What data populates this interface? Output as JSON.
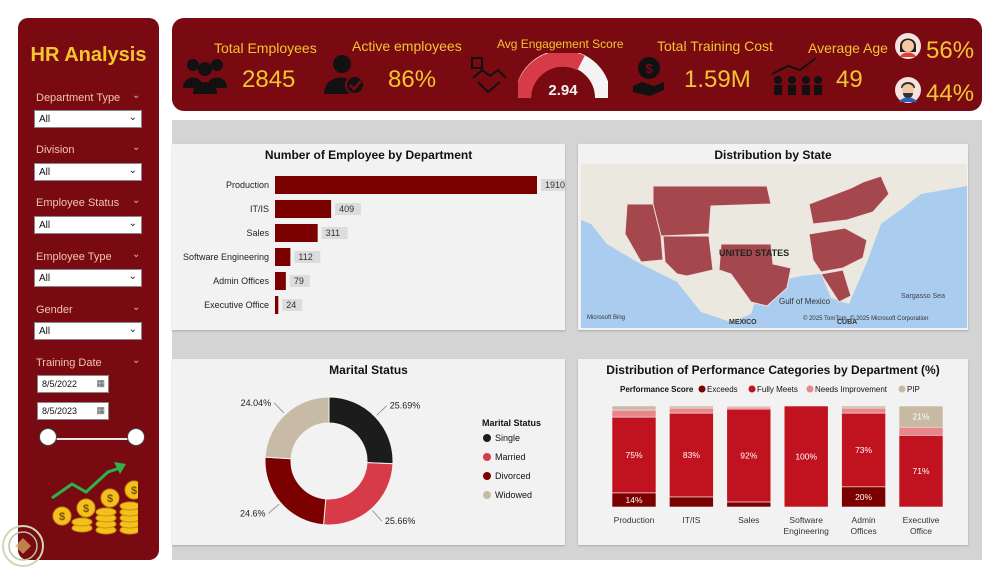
{
  "sidebar": {
    "title": "HR Analysis",
    "filters": [
      {
        "label": "Department Type",
        "value": "All"
      },
      {
        "label": "Division",
        "value": "All"
      },
      {
        "label": "Employee Status",
        "value": "All"
      },
      {
        "label": "Employee Type",
        "value": "All"
      },
      {
        "label": "Gender",
        "value": "All"
      }
    ],
    "training": {
      "label": "Training Date",
      "start": "8/5/2022",
      "end": "8/5/2023"
    }
  },
  "kpis": {
    "total_employees": {
      "label": "Total Employees",
      "value": "2845"
    },
    "active_employees": {
      "label": "Active employees",
      "value": "86%"
    },
    "engagement": {
      "label": "Avg Engagement Score",
      "value": "2.94"
    },
    "training_cost": {
      "label": "Total Training Cost",
      "value": "1.59M"
    },
    "average_age": {
      "label": "Average Age",
      "value": "49"
    },
    "female_pct": "56%",
    "male_pct": "44%"
  },
  "colors": {
    "maroon": "#7a0a12",
    "gold": "#f3c52f",
    "bar": "#7b0000",
    "fully": "#c1121f",
    "needs": "#e8868a",
    "pip": "#c8b9a3",
    "single": "#1c1c1c",
    "married": "#d63b47",
    "divorced": "#7b0000",
    "widowed": "#c8bba5"
  },
  "dept_chart": {
    "title": "Number of Employee by Department",
    "chart_data": {
      "type": "bar",
      "categories": [
        "Production",
        "IT/IS",
        "Sales",
        "Software Engineering",
        "Admin Offices",
        "Executive Office"
      ],
      "values": [
        1910,
        409,
        311,
        112,
        79,
        24
      ]
    }
  },
  "map": {
    "title": "Distribution by State",
    "labels": {
      "country": "UNITED STATES",
      "gulf": "Gulf of Mexico",
      "mexico": "MEXICO",
      "cuba": "CUBA",
      "sea": "Sargasso Sea",
      "bing": "Microsoft Bing",
      "copyright": "© 2025 TomTom, © 2025 Microsoft Corporation"
    }
  },
  "marital": {
    "title": "Marital Status",
    "legend_title": "Marital Status",
    "chart_data": {
      "type": "pie",
      "categories": [
        "Single",
        "Married",
        "Divorced",
        "Widowed"
      ],
      "values": [
        25.69,
        25.66,
        24.6,
        24.04
      ],
      "labels": [
        "25.69%",
        "25.66%",
        "24.6%",
        "24.04%"
      ]
    }
  },
  "performance": {
    "title": "Distribution of Performance Categories by Department (%)",
    "legend_title": "Performance Score",
    "chart_data": {
      "type": "bar",
      "categories": [
        "Production",
        "IT/IS",
        "Sales",
        "Software Engineering",
        "Admin Offices",
        "Executive Office"
      ],
      "series": [
        {
          "name": "Exceeds",
          "values": [
            14,
            10,
            5,
            0,
            20,
            0
          ]
        },
        {
          "name": "Fully Meets",
          "values": [
            75,
            83,
            92,
            100,
            73,
            71
          ]
        },
        {
          "name": "Needs Improvement",
          "values": [
            7,
            5,
            2,
            0,
            5,
            8
          ]
        },
        {
          "name": "PIP",
          "values": [
            4,
            2,
            1,
            0,
            2,
            21
          ]
        }
      ],
      "labels": {
        "Exceeds": [
          "14%",
          "",
          "",
          "",
          "20%",
          ""
        ],
        "Fully Meets": [
          "75%",
          "83%",
          "92%",
          "100%",
          "73%",
          "71%"
        ],
        "PIP": [
          "",
          "",
          "",
          "",
          "",
          "21%"
        ]
      }
    }
  }
}
